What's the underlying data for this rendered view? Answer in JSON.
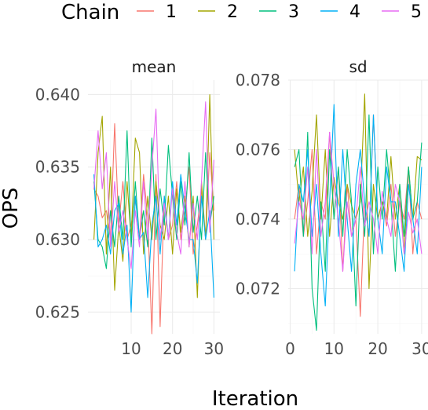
{
  "chart_data": {
    "type": "line",
    "xlabel": "Iteration",
    "ylabel": "OPS",
    "legend": {
      "title": "Chain",
      "position": "top"
    },
    "series_colors": {
      "1": "#F8766D",
      "2": "#A3A500",
      "3": "#00BF7D",
      "4": "#00B0F6",
      "5": "#E76BF3"
    },
    "x": [
      1,
      2,
      3,
      4,
      5,
      6,
      7,
      8,
      9,
      10,
      11,
      12,
      13,
      14,
      15,
      16,
      17,
      18,
      19,
      20,
      21,
      22,
      23,
      24,
      25,
      26,
      27,
      28,
      29,
      30
    ],
    "panels": [
      {
        "strip": "mean",
        "ylim": [
          0.6235,
          0.641
        ],
        "y_ticks": [
          0.625,
          0.63,
          0.635,
          0.64
        ],
        "y_tick_labels": [
          "0.625",
          "0.630",
          "0.635",
          "0.640"
        ],
        "x_ticks": [
          10,
          20,
          30
        ],
        "x_tick_labels": [
          "10",
          "20",
          "30"
        ],
        "series": [
          {
            "name": "1",
            "values": [
              0.6335,
              0.633,
              0.6315,
              0.632,
              0.63,
              0.638,
              0.631,
              0.634,
              0.63,
              0.631,
              0.633,
              0.63,
              0.6345,
              0.6315,
              0.6235,
              0.6345,
              0.624,
              0.633,
              0.63,
              0.631,
              0.634,
              0.63,
              0.632,
              0.635,
              0.629,
              0.631,
              0.6335,
              0.63,
              0.636,
              0.632
            ]
          },
          {
            "name": "2",
            "values": [
              0.63,
              0.636,
              0.6385,
              0.629,
              0.635,
              0.6265,
              0.631,
              0.6285,
              0.634,
              0.63,
              0.637,
              0.636,
              0.629,
              0.633,
              0.63,
              0.634,
              0.631,
              0.63,
              0.633,
              0.629,
              0.6335,
              0.6305,
              0.633,
              0.6295,
              0.633,
              0.626,
              0.634,
              0.63,
              0.64,
              0.63
            ]
          },
          {
            "name": "3",
            "values": [
              0.634,
              0.63,
              0.6295,
              0.628,
              0.632,
              0.6295,
              0.633,
              0.63,
              0.6375,
              0.6295,
              0.634,
              0.63,
              0.632,
              0.6295,
              0.637,
              0.63,
              0.6335,
              0.631,
              0.6365,
              0.633,
              0.63,
              0.634,
              0.631,
              0.636,
              0.6305,
              0.633,
              0.63,
              0.636,
              0.631,
              0.633
            ]
          },
          {
            "name": "4",
            "values": [
              0.6345,
              0.6295,
              0.63,
              0.631,
              0.629,
              0.632,
              0.6325,
              0.629,
              0.631,
              0.625,
              0.633,
              0.63,
              0.6305,
              0.626,
              0.631,
              0.633,
              0.629,
              0.633,
              0.63,
              0.634,
              0.631,
              0.6345,
              0.632,
              0.63,
              0.63,
              0.627,
              0.633,
              0.63,
              0.632,
              0.626
            ]
          },
          {
            "name": "5",
            "values": [
              0.6335,
              0.6375,
              0.6335,
              0.636,
              0.6295,
              0.634,
              0.6305,
              0.632,
              0.63,
              0.628,
              0.632,
              0.6295,
              0.634,
              0.63,
              0.635,
              0.639,
              0.63,
              0.6325,
              0.63,
              0.6335,
              0.6305,
              0.629,
              0.634,
              0.6295,
              0.6325,
              0.63,
              0.634,
              0.6395,
              0.6305,
              0.6355
            ]
          }
        ]
      },
      {
        "strip": "sd",
        "ylim": [
          0.0707,
          0.078
        ],
        "y_ticks": [
          0.072,
          0.074,
          0.076,
          0.078
        ],
        "y_tick_labels": [
          "0.072",
          "0.074",
          "0.076",
          "0.078"
        ],
        "x_ticks": [
          0,
          10,
          20,
          30
        ],
        "x_tick_labels": [
          "0",
          "10",
          "20",
          "30"
        ],
        "series": [
          {
            "name": "1",
            "values": [
              0.074,
              0.075,
              0.0735,
              0.0745,
              0.076,
              0.073,
              0.0745,
              0.074,
              0.0765,
              0.074,
              0.0755,
              0.0725,
              0.075,
              0.0735,
              0.074,
              0.0712,
              0.0745,
              0.0735,
              0.077,
              0.074,
              0.0745,
              0.0738,
              0.075,
              0.0735,
              0.0745,
              0.074,
              0.0755,
              0.073,
              0.0745,
              0.074
            ]
          },
          {
            "name": "2",
            "values": [
              0.076,
              0.0745,
              0.0755,
              0.0735,
              0.0748,
              0.077,
              0.074,
              0.076,
              0.0735,
              0.0752,
              0.0745,
              0.074,
              0.075,
              0.0744,
              0.074,
              0.0745,
              0.0776,
              0.072,
              0.075,
              0.074,
              0.0745,
              0.074,
              0.0758,
              0.074,
              0.075,
              0.073,
              0.0755,
              0.074,
              0.0758,
              0.0757
            ]
          },
          {
            "name": "3",
            "values": [
              0.0755,
              0.076,
              0.0735,
              0.0765,
              0.072,
              0.0708,
              0.0745,
              0.0725,
              0.076,
              0.074,
              0.0755,
              0.0735,
              0.076,
              0.0745,
              0.0715,
              0.075,
              0.0735,
              0.077,
              0.073,
              0.0755,
              0.074,
              0.076,
              0.0745,
              0.0725,
              0.075,
              0.0735,
              0.0755,
              0.074,
              0.0745,
              0.0762
            ]
          },
          {
            "name": "4",
            "values": [
              0.0725,
              0.075,
              0.0745,
              0.076,
              0.0735,
              0.075,
              0.073,
              0.0715,
              0.0745,
              0.0773,
              0.0735,
              0.076,
              0.074,
              0.0725,
              0.075,
              0.076,
              0.0745,
              0.0735,
              0.077,
              0.074,
              0.073,
              0.0755,
              0.0745,
              0.0745,
              0.0735,
              0.0725,
              0.075,
              0.074,
              0.073,
              0.0755
            ]
          },
          {
            "name": "5",
            "values": [
              0.0733,
              0.0745,
              0.074,
              0.0755,
              0.073,
              0.076,
              0.0735,
              0.0745,
              0.0765,
              0.075,
              0.074,
              0.0725,
              0.0745,
              0.0735,
              0.074,
              0.0755,
              0.0738,
              0.0745,
              0.074,
              0.073,
              0.0748,
              0.074,
              0.0735,
              0.075,
              0.0745,
              0.073,
              0.0742,
              0.0736,
              0.074,
              0.073
            ]
          }
        ]
      }
    ]
  }
}
